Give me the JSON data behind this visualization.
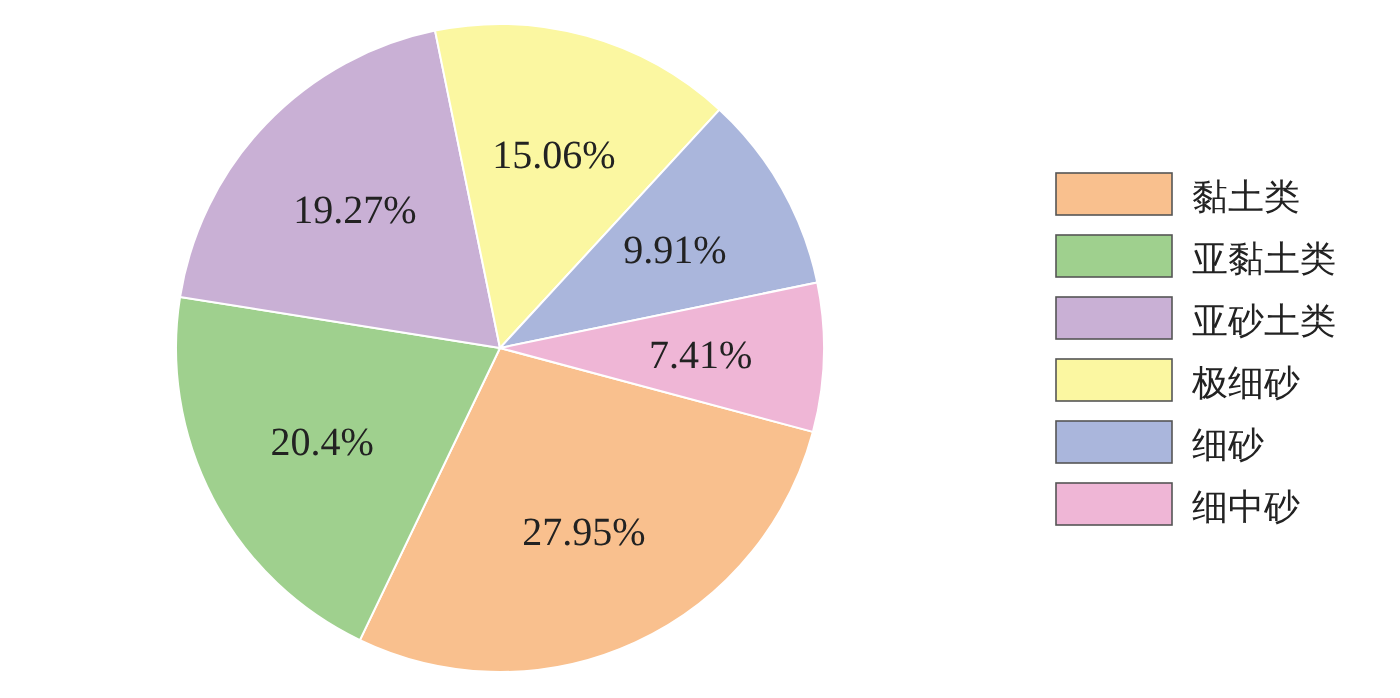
{
  "chart_data": {
    "type": "pie",
    "categories": [
      "黏土类",
      "亚黏土类",
      "亚砂土类",
      "极细砂",
      "细砂",
      "细中砂"
    ],
    "values": [
      27.95,
      20.4,
      19.27,
      15.06,
      9.91,
      7.41
    ],
    "colors": [
      "#f9c08e",
      "#9fd08e",
      "#c9b0d5",
      "#fbf7a1",
      "#aab6dc",
      "#efb6d6"
    ],
    "value_labels": [
      "27.95%",
      "20.4%",
      "19.27%",
      "15.06%",
      "9.91%",
      "7.41%"
    ],
    "legend": "right"
  }
}
